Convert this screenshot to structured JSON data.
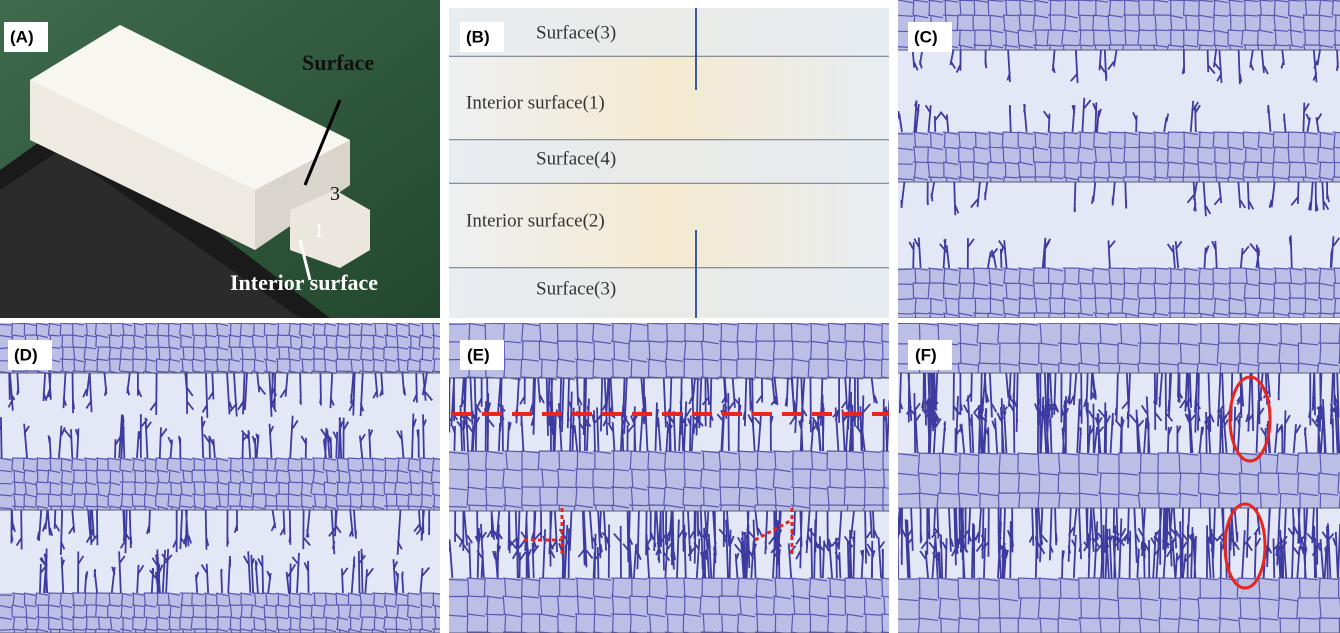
{
  "panels": [
    {
      "label": "(A)",
      "annotations": [
        "Surface",
        "3",
        "1",
        "Interior surface"
      ]
    },
    {
      "label": "(B)",
      "annotations": [
        "Surface(3)",
        "Interior surface(1)",
        "Surface(4)",
        "Interior surface(2)",
        "Surface(3)"
      ]
    },
    {
      "label": "(C)"
    },
    {
      "label": "(D)"
    },
    {
      "label": "(E)"
    },
    {
      "label": "(F)"
    }
  ]
}
